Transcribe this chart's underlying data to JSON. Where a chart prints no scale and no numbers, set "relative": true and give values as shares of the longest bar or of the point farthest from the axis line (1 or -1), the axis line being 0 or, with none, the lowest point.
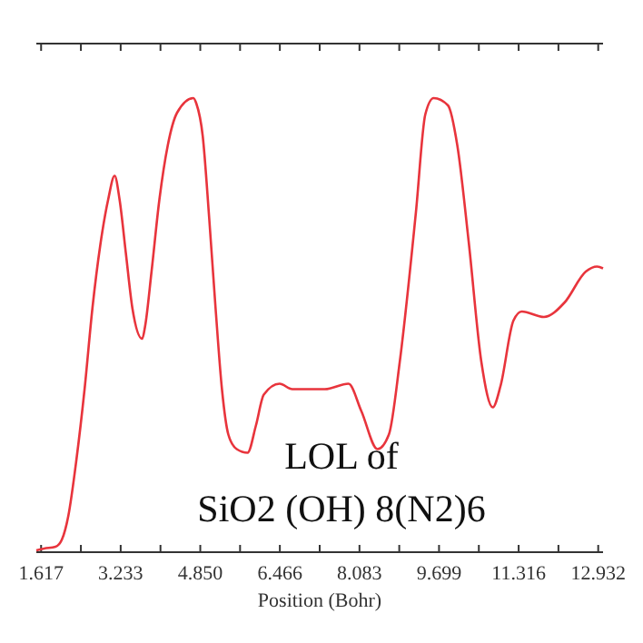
{
  "chart_data": {
    "type": "line",
    "relative": true,
    "xlabel": "Position (Bohr)",
    "xlim": [
      1.52,
      13.03
    ],
    "xticks": [
      1.617,
      3.233,
      {
        "value": 4.85,
        "label": "4.850"
      },
      6.466,
      8.083,
      9.699,
      11.316,
      12.932
    ],
    "annotations": [
      "LOL of",
      "SiO2 (OH) 8(N2)6"
    ],
    "grid": false,
    "marker": "none",
    "line_style": "solid",
    "series": [
      {
        "color": "#e8343c",
        "x": [
          1.52,
          1.68,
          1.91,
          2.04,
          2.17,
          2.33,
          2.5,
          2.66,
          2.82,
          2.98,
          3.11,
          3.21,
          3.34,
          3.47,
          3.67,
          3.73,
          3.86,
          4.02,
          4.19,
          4.38,
          4.71,
          4.77,
          4.9,
          5.03,
          5.16,
          5.29,
          5.42,
          5.59,
          5.81,
          5.98,
          6.14,
          6.46,
          6.72,
          7.38,
          7.86,
          8.12,
          8.45,
          8.68,
          8.9,
          9.23,
          9.42,
          9.59,
          9.88,
          10.07,
          10.3,
          10.56,
          10.79,
          10.95,
          11.21,
          11.38,
          11.83,
          12.25,
          12.68,
          12.91,
          13.03
        ],
        "values": [
          0.004,
          0.008,
          0.012,
          0.028,
          0.08,
          0.2,
          0.359,
          0.538,
          0.677,
          0.777,
          0.829,
          0.777,
          0.657,
          0.538,
          0.47,
          0.498,
          0.618,
          0.777,
          0.896,
          0.968,
          1.0,
          0.988,
          0.916,
          0.737,
          0.538,
          0.359,
          0.259,
          0.227,
          0.219,
          0.279,
          0.347,
          0.371,
          0.359,
          0.359,
          0.371,
          0.311,
          0.227,
          0.259,
          0.418,
          0.749,
          0.964,
          1.0,
          0.984,
          0.896,
          0.685,
          0.418,
          0.319,
          0.367,
          0.51,
          0.53,
          0.518,
          0.55,
          0.618,
          0.629,
          0.625
        ]
      }
    ]
  }
}
